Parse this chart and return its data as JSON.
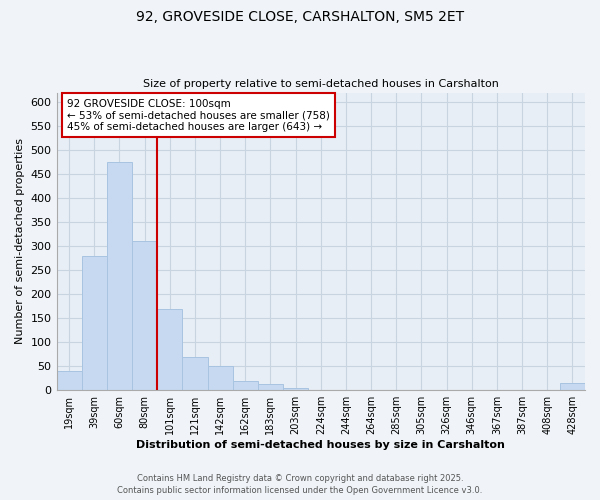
{
  "title": "92, GROVESIDE CLOSE, CARSHALTON, SM5 2ET",
  "subtitle": "Size of property relative to semi-detached houses in Carshalton",
  "bar_labels": [
    "19sqm",
    "39sqm",
    "60sqm",
    "80sqm",
    "101sqm",
    "121sqm",
    "142sqm",
    "162sqm",
    "183sqm",
    "203sqm",
    "224sqm",
    "244sqm",
    "264sqm",
    "285sqm",
    "305sqm",
    "326sqm",
    "346sqm",
    "367sqm",
    "387sqm",
    "408sqm",
    "428sqm"
  ],
  "bar_values": [
    40,
    280,
    475,
    310,
    170,
    70,
    50,
    20,
    12,
    5,
    0,
    0,
    0,
    0,
    0,
    0,
    0,
    0,
    0,
    0,
    15
  ],
  "bar_color": "#c6d9f0",
  "bar_edge_color": "#a8c4e0",
  "vline_x_index": 4,
  "vline_color": "#cc0000",
  "annotation_title": "92 GROVESIDE CLOSE: 100sqm",
  "annotation_line1": "← 53% of semi-detached houses are smaller (758)",
  "annotation_line2": "45% of semi-detached houses are larger (643) →",
  "xlabel": "Distribution of semi-detached houses by size in Carshalton",
  "ylabel": "Number of semi-detached properties",
  "ylim": [
    0,
    620
  ],
  "yticks": [
    0,
    50,
    100,
    150,
    200,
    250,
    300,
    350,
    400,
    450,
    500,
    550,
    600
  ],
  "footnote1": "Contains HM Land Registry data © Crown copyright and database right 2025.",
  "footnote2": "Contains public sector information licensed under the Open Government Licence v3.0.",
  "background_color": "#f0f4f8",
  "plot_bg_color": "#e8eef5",
  "grid_color": "#c8d4e0"
}
